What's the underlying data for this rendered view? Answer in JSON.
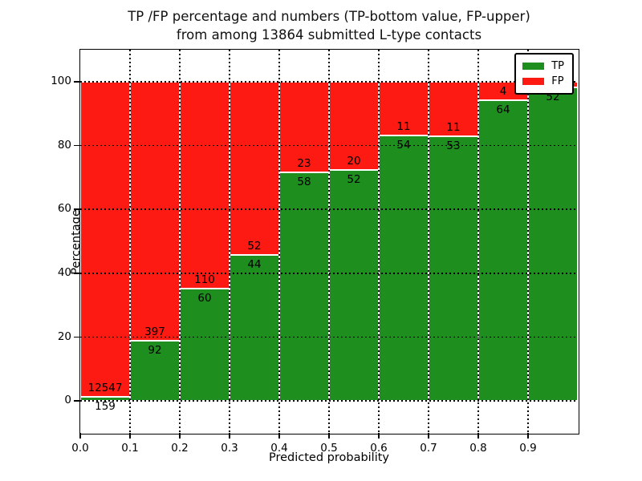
{
  "title": {
    "line1": "TP /FP percentage and numbers (TP-bottom value, FP-upper)",
    "line2": "from among 13864 submitted L-type contacts"
  },
  "axes": {
    "y_label": "Percentage",
    "x_label": "Predicted probability",
    "y_ticks": [
      "0",
      "20",
      "40",
      "60",
      "80",
      "100"
    ],
    "y_tick_values": [
      0,
      20,
      40,
      60,
      80,
      100
    ],
    "x_ticks": [
      "0.0",
      "0.1",
      "0.2",
      "0.3",
      "0.4",
      "0.5",
      "0.6",
      "0.7",
      "0.8",
      "0.9"
    ]
  },
  "legend": {
    "items": [
      {
        "label": "TP",
        "color": "#1e8e1e"
      },
      {
        "label": "FP",
        "color": "#fc1a12"
      }
    ]
  },
  "chart_data": {
    "type": "bar",
    "stacked": true,
    "title": "TP /FP percentage and numbers (TP-bottom value, FP-upper) from among 13864 submitted L-type contacts",
    "xlabel": "Predicted probability",
    "ylabel": "Percentage",
    "total_submitted": 13864,
    "xlim": [
      0.0,
      1.0
    ],
    "ylim": [
      -10,
      110
    ],
    "bin_width": 0.1,
    "bin_starts": [
      0.0,
      0.1,
      0.2,
      0.3,
      0.4,
      0.5,
      0.6,
      0.7,
      0.8,
      0.9
    ],
    "grid": "dotted",
    "legend_position": "upper right",
    "series": [
      {
        "name": "TP",
        "color": "#1e8e1e",
        "counts": [
          159,
          92,
          60,
          44,
          58,
          52,
          54,
          53,
          64,
          52
        ],
        "percent_of_bin": [
          1.25,
          18.81,
          35.29,
          45.83,
          71.6,
          72.22,
          83.08,
          82.81,
          94.12,
          98.11
        ]
      },
      {
        "name": "FP",
        "color": "#fc1a12",
        "counts": [
          12547,
          397,
          110,
          52,
          23,
          20,
          11,
          11,
          4,
          null
        ]
      }
    ]
  }
}
